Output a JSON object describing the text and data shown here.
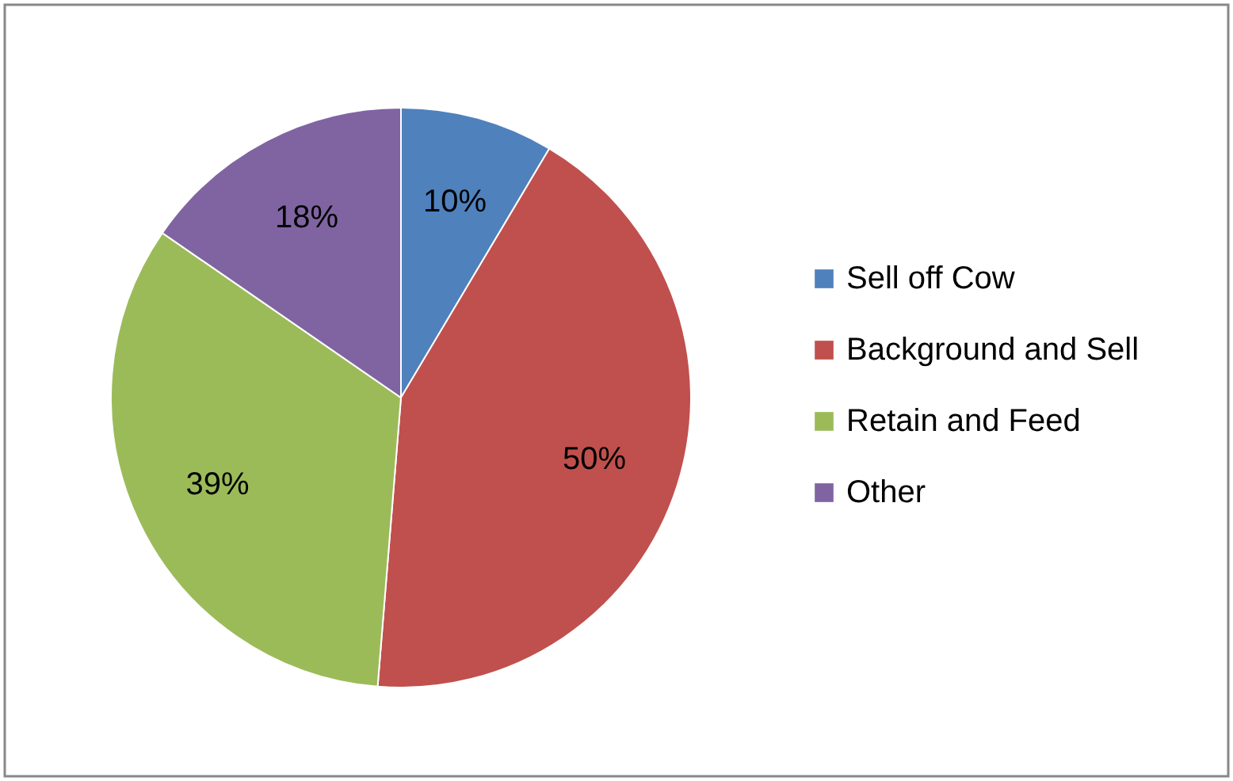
{
  "chart_data": {
    "type": "pie",
    "categories": [
      "Sell off Cow",
      "Background and Sell",
      "Retain and Feed",
      "Other"
    ],
    "values": [
      10,
      50,
      39,
      18
    ],
    "value_labels": [
      "10%",
      "50%",
      "39%",
      "18%"
    ],
    "colors": [
      "#4f81bd",
      "#c0504d",
      "#9bbb59",
      "#8064a2"
    ],
    "legend": "right"
  }
}
